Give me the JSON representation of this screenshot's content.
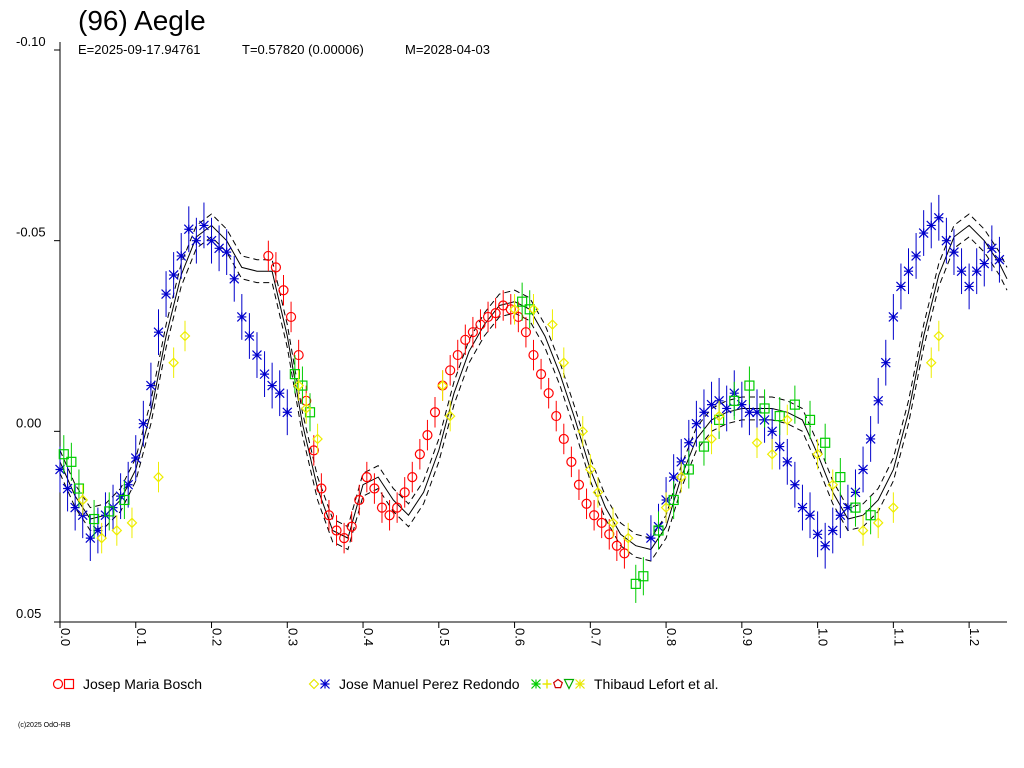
{
  "header": {
    "title": "(96) Aegle",
    "epoch": "E=2025-09-17.94761",
    "period": "T=0.57820 (0.00006)",
    "max_date": "M=2028-04-03"
  },
  "chart_data": {
    "type": "scatter",
    "title": "(96) Aegle",
    "xlabel": "",
    "ylabel": "",
    "xlim": [
      0.0,
      1.25
    ],
    "ylim": [
      0.05,
      -0.1
    ],
    "y_inverted": true,
    "x_ticks": [
      "0.0",
      "0.1",
      "0.2",
      "0.3",
      "0.4",
      "0.5",
      "0.6",
      "0.7",
      "0.8",
      "0.9",
      "1.0",
      "1.1",
      "1.2"
    ],
    "y_ticks": [
      "-0.10",
      "-0.05",
      "0.00",
      "0.05"
    ],
    "grid": false,
    "legend_position": "bottom",
    "model_curve": {
      "x": [
        0.0,
        0.02,
        0.04,
        0.06,
        0.08,
        0.1,
        0.12,
        0.14,
        0.16,
        0.18,
        0.2,
        0.22,
        0.24,
        0.26,
        0.28,
        0.3,
        0.32,
        0.34,
        0.36,
        0.38,
        0.4,
        0.42,
        0.44,
        0.46,
        0.48,
        0.5,
        0.52,
        0.54,
        0.56,
        0.58,
        0.6,
        0.62,
        0.64,
        0.66,
        0.68,
        0.7,
        0.72,
        0.74,
        0.76,
        0.78,
        0.8,
        0.82,
        0.84,
        0.86,
        0.88,
        0.9,
        0.92,
        0.94,
        0.96,
        0.98,
        1.0,
        1.02,
        1.04,
        1.06,
        1.08,
        1.1,
        1.12,
        1.14,
        1.16,
        1.18,
        1.2,
        1.22,
        1.24,
        1.25
      ],
      "y": [
        0.008,
        0.017,
        0.023,
        0.022,
        0.018,
        0.01,
        -0.005,
        -0.025,
        -0.041,
        -0.051,
        -0.054,
        -0.05,
        -0.043,
        -0.042,
        -0.042,
        -0.025,
        -0.002,
        0.015,
        0.026,
        0.028,
        0.014,
        0.012,
        0.018,
        0.022,
        0.016,
        0.005,
        -0.01,
        -0.021,
        -0.028,
        -0.033,
        -0.034,
        -0.032,
        -0.025,
        -0.015,
        -0.003,
        0.01,
        0.02,
        0.027,
        0.03,
        0.031,
        0.025,
        0.012,
        0.002,
        -0.003,
        -0.005,
        -0.006,
        -0.006,
        -0.006,
        -0.005,
        -0.003,
        0.006,
        0.016,
        0.023,
        0.022,
        0.018,
        0.01,
        -0.005,
        -0.025,
        -0.041,
        -0.051,
        -0.054,
        -0.05,
        -0.044,
        -0.04
      ],
      "band": 0.003
    },
    "series": [
      {
        "name": "Josep Maria Bosch",
        "color": "#ff0000",
        "marker": "circle",
        "x": [
          0.275,
          0.285,
          0.295,
          0.305,
          0.315,
          0.325,
          0.335,
          0.345,
          0.355,
          0.365,
          0.375,
          0.385,
          0.395,
          0.405,
          0.415,
          0.425,
          0.435,
          0.445,
          0.455,
          0.465,
          0.475,
          0.485,
          0.495,
          0.505,
          0.515,
          0.525,
          0.535,
          0.545,
          0.555,
          0.565,
          0.575,
          0.585,
          0.595,
          0.605,
          0.615,
          0.625,
          0.635,
          0.645,
          0.655,
          0.665,
          0.675,
          0.685,
          0.695,
          0.705,
          0.715,
          0.725,
          0.735,
          0.745
        ],
        "y": [
          -0.046,
          -0.043,
          -0.037,
          -0.03,
          -0.02,
          -0.008,
          0.005,
          0.015,
          0.022,
          0.026,
          0.028,
          0.025,
          0.018,
          0.012,
          0.015,
          0.02,
          0.022,
          0.02,
          0.016,
          0.012,
          0.006,
          0.001,
          -0.005,
          -0.012,
          -0.016,
          -0.02,
          -0.024,
          -0.026,
          -0.028,
          -0.03,
          -0.031,
          -0.033,
          -0.032,
          -0.03,
          -0.026,
          -0.02,
          -0.015,
          -0.01,
          -0.004,
          0.002,
          0.008,
          0.014,
          0.019,
          0.022,
          0.024,
          0.027,
          0.03,
          0.032
        ],
        "err": 0.004
      },
      {
        "name": "Jose Manuel Perez Redondo",
        "color": "#0000cc",
        "marker": "star",
        "x": [
          0.0,
          0.01,
          0.02,
          0.03,
          0.04,
          0.05,
          0.06,
          0.07,
          0.08,
          0.09,
          0.1,
          0.11,
          0.12,
          0.13,
          0.14,
          0.15,
          0.16,
          0.17,
          0.18,
          0.19,
          0.2,
          0.21,
          0.22,
          0.23,
          0.24,
          0.25,
          0.26,
          0.27,
          0.28,
          0.29,
          0.3,
          0.78,
          0.79,
          0.8,
          0.81,
          0.82,
          0.83,
          0.84,
          0.85,
          0.86,
          0.87,
          0.88,
          0.89,
          0.9,
          0.91,
          0.92,
          0.93,
          0.94,
          0.95,
          0.96,
          0.97,
          0.98,
          0.99,
          1.0,
          1.01,
          1.02,
          1.03,
          1.04,
          1.05,
          1.06,
          1.07,
          1.08,
          1.09,
          1.1,
          1.11,
          1.12,
          1.13,
          1.14,
          1.15,
          1.16,
          1.17,
          1.18,
          1.19,
          1.2,
          1.21,
          1.22,
          1.23,
          1.24
        ],
        "y": [
          0.01,
          0.015,
          0.02,
          0.022,
          0.028,
          0.026,
          0.022,
          0.02,
          0.017,
          0.014,
          0.007,
          -0.002,
          -0.012,
          -0.026,
          -0.036,
          -0.041,
          -0.046,
          -0.053,
          -0.05,
          -0.054,
          -0.05,
          -0.048,
          -0.047,
          -0.04,
          -0.03,
          -0.025,
          -0.02,
          -0.015,
          -0.012,
          -0.01,
          -0.005,
          0.028,
          0.025,
          0.018,
          0.012,
          0.008,
          0.003,
          -0.002,
          -0.005,
          -0.007,
          -0.008,
          -0.006,
          -0.01,
          -0.007,
          -0.005,
          -0.005,
          -0.003,
          0.0,
          0.004,
          0.008,
          0.014,
          0.02,
          0.022,
          0.027,
          0.03,
          0.026,
          0.022,
          0.02,
          0.016,
          0.01,
          0.002,
          -0.008,
          -0.018,
          -0.03,
          -0.038,
          -0.042,
          -0.046,
          -0.052,
          -0.054,
          -0.056,
          -0.05,
          -0.047,
          -0.042,
          -0.038,
          -0.042,
          -0.044,
          -0.048,
          -0.045
        ],
        "err": 0.006
      },
      {
        "name": "Thibaud Lefort et al.",
        "color": "#00cc00",
        "marker": "square",
        "x": [
          0.005,
          0.015,
          0.025,
          0.045,
          0.065,
          0.085,
          0.31,
          0.32,
          0.33,
          0.61,
          0.62,
          0.76,
          0.77,
          0.79,
          0.81,
          0.83,
          0.85,
          0.87,
          0.89,
          0.91,
          0.93,
          0.95,
          0.97,
          0.99,
          1.01,
          1.03,
          1.05,
          1.07
        ],
        "y": [
          0.006,
          0.008,
          0.015,
          0.023,
          0.021,
          0.018,
          -0.015,
          -0.012,
          -0.005,
          -0.034,
          -0.032,
          0.04,
          0.038,
          0.026,
          0.018,
          0.01,
          0.004,
          -0.003,
          -0.008,
          -0.012,
          -0.006,
          -0.004,
          -0.007,
          -0.003,
          0.003,
          0.012,
          0.02,
          0.022
        ],
        "err": 0.005
      },
      {
        "name": "",
        "color": "#eeee00",
        "marker": "diamond",
        "x": [
          0.03,
          0.055,
          0.075,
          0.095,
          0.13,
          0.15,
          0.165,
          0.315,
          0.325,
          0.34,
          0.505,
          0.515,
          0.6,
          0.625,
          0.65,
          0.665,
          0.69,
          0.7,
          0.71,
          0.73,
          0.75,
          0.8,
          0.82,
          0.86,
          0.87,
          0.92,
          0.94,
          0.96,
          1.0,
          1.02,
          1.06,
          1.08,
          1.1,
          1.15,
          1.16
        ],
        "y": [
          0.018,
          0.028,
          0.026,
          0.024,
          0.012,
          -0.018,
          -0.025,
          -0.012,
          -0.006,
          0.002,
          -0.012,
          -0.004,
          -0.032,
          -0.032,
          -0.028,
          -0.018,
          0.0,
          0.01,
          0.016,
          0.024,
          0.028,
          0.02,
          0.012,
          0.002,
          -0.004,
          0.003,
          0.006,
          -0.003,
          0.006,
          0.014,
          0.026,
          0.024,
          0.02,
          -0.018,
          -0.025
        ],
        "err": 0.004
      }
    ],
    "legend": [
      {
        "label": "Josep Maria Bosch",
        "markers": [
          {
            "shape": "circle",
            "color": "#ff0000"
          },
          {
            "shape": "square",
            "color": "#ff0000"
          }
        ]
      },
      {
        "label": "Jose Manuel Perez Redondo",
        "markers": [
          {
            "shape": "diamond",
            "color": "#e8e800"
          },
          {
            "shape": "star",
            "color": "#0000cc"
          }
        ]
      },
      {
        "label": "Thibaud Lefort et al.",
        "markers": [
          {
            "shape": "star",
            "color": "#00cc00"
          },
          {
            "shape": "plus",
            "color": "#e8e800"
          },
          {
            "shape": "pentagon",
            "color": "#cc0000"
          },
          {
            "shape": "triangle-down",
            "color": "#00aa00"
          },
          {
            "shape": "star",
            "color": "#e8e800"
          }
        ]
      }
    ]
  },
  "footer": {
    "copyright": "(c)2025 OdO-RB"
  }
}
